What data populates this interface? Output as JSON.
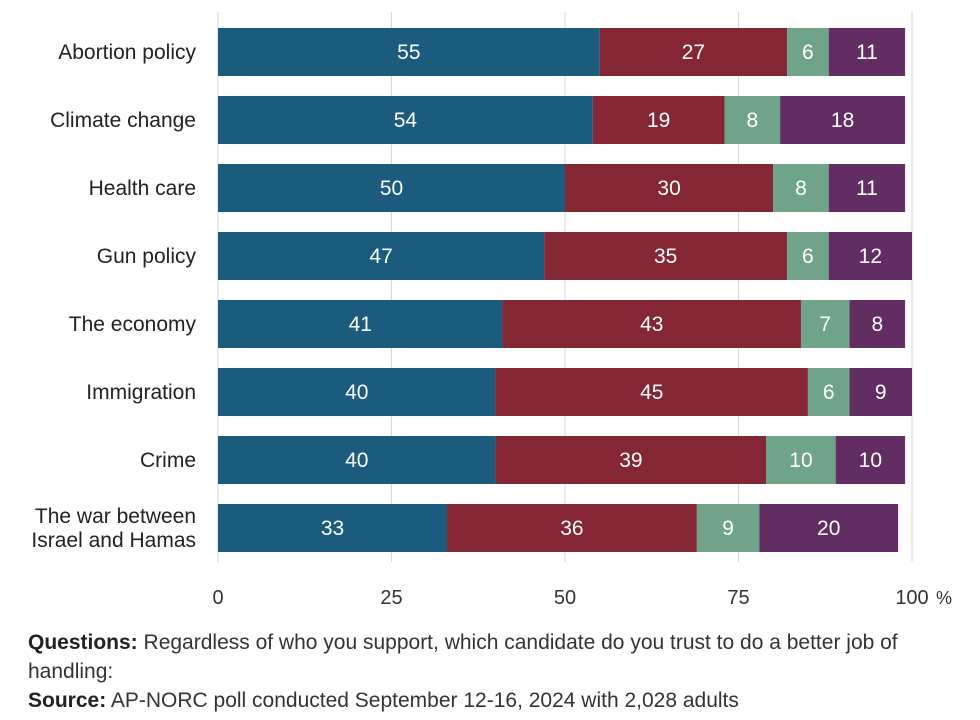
{
  "chart_data": {
    "type": "bar",
    "orientation": "horizontal",
    "stacked": true,
    "categories": [
      [
        "Abortion policy"
      ],
      [
        "Climate change"
      ],
      [
        "Health care"
      ],
      [
        "Gun policy"
      ],
      [
        "The economy"
      ],
      [
        "Immigration"
      ],
      [
        "Crime"
      ],
      [
        "The war between",
        "Israel and Hamas"
      ]
    ],
    "series": [
      {
        "color": "#1a5b7e",
        "values": [
          55,
          54,
          50,
          47,
          41,
          40,
          40,
          33
        ]
      },
      {
        "color": "#842633",
        "values": [
          27,
          19,
          30,
          35,
          43,
          45,
          39,
          36
        ]
      },
      {
        "color": "#6fa48a",
        "values": [
          6,
          8,
          8,
          6,
          7,
          6,
          10,
          9
        ]
      },
      {
        "color": "#622d63",
        "values": [
          11,
          18,
          11,
          12,
          8,
          9,
          10,
          20
        ]
      }
    ],
    "xlim": [
      0,
      100
    ],
    "xticks": [
      0,
      25,
      50,
      75,
      100
    ],
    "xtick_labels": [
      "0",
      "25",
      "50",
      "75",
      "100"
    ],
    "x_unit": "%",
    "grid": true,
    "title": "",
    "xlabel": "",
    "ylabel": ""
  },
  "notes": {
    "questions_label": "Questions:",
    "questions_text": " Regardless of who you support, which candidate do you trust to do a better job of handling:",
    "source_label": "Source:",
    "source_text": " AP-NORC poll conducted September 12-16, 2024 with 2,028 adults"
  }
}
